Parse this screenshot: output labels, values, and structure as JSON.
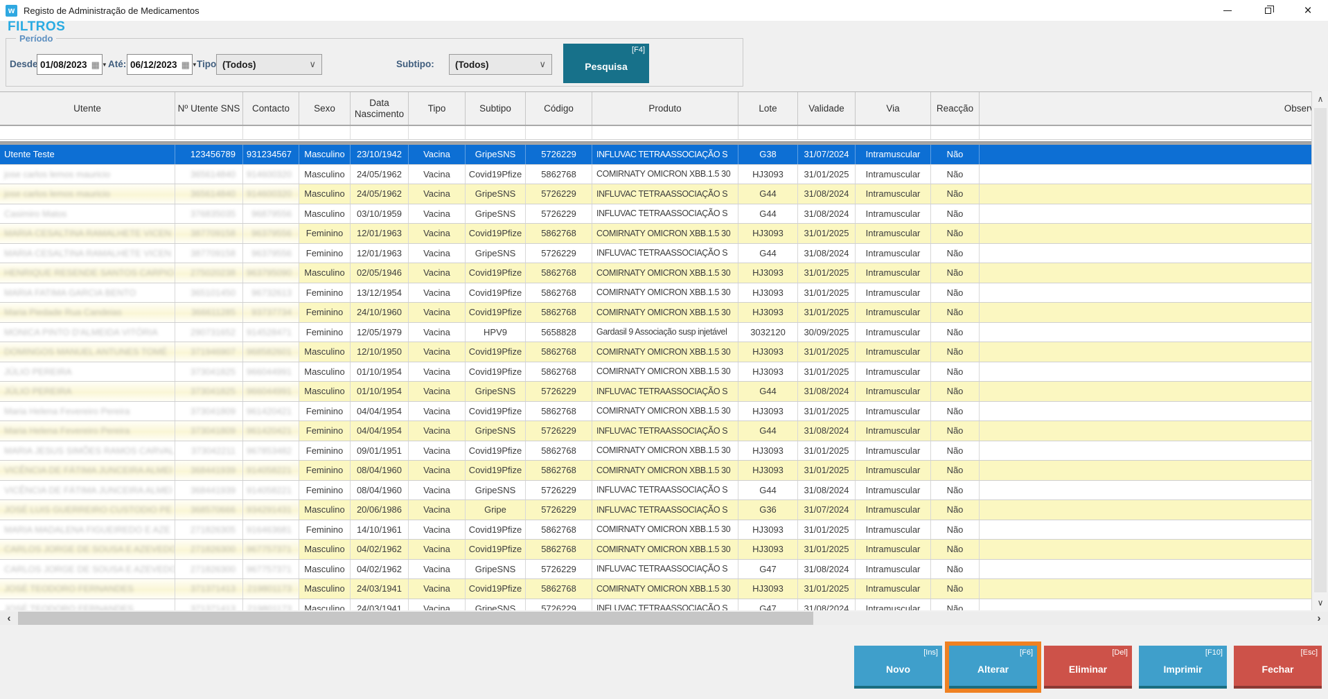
{
  "window": {
    "title": "Registo de Administração de Medicamentos",
    "icon_letter": "w"
  },
  "icons": {
    "calendar": "▦",
    "small_arrow": "▼",
    "chevron": "∨",
    "close": "×",
    "scroll_up": "∧",
    "scroll_down": "∨",
    "scroll_left": "‹",
    "scroll_right": "›"
  },
  "colors": {
    "filtros_heading": "#29abe2",
    "selected_row": "#0d6fd4",
    "alt_row_yellow": "#fbf7c1",
    "search_button_teal": "#17718a",
    "action_blue": "#3f9fcb",
    "action_red": "#cd5249",
    "highlight_orange": "#ef8122"
  },
  "filters": {
    "heading": "FILTROS",
    "group_label": "Período",
    "desde_label": "Desde:",
    "desde_value": "01/08/2023",
    "ate_label": "Até:",
    "ate_value": "06/12/2023",
    "tipo_label": "Tipo:",
    "tipo_value": "(Todos)",
    "subtipo_label": "Subtipo:",
    "subtipo_value": "(Todos)",
    "search_label": "Pesquisa",
    "search_shortcut": "[F4]"
  },
  "table": {
    "columns": [
      "Utente",
      "Nº Utente SNS",
      "Contacto",
      "Sexo",
      "Data Nascimento",
      "Tipo",
      "Subtipo",
      "Código",
      "Produto",
      "Lote",
      "Validade",
      "Via",
      "Reacção",
      "Observações"
    ],
    "rows": [
      {
        "bg": "selected",
        "redacted": false,
        "cells": [
          "Utente Teste",
          "123456789",
          "931234567",
          "Masculino",
          "23/10/1942",
          "Vacina",
          "GripeSNS",
          "5726229",
          "INFLUVAC TETRAASSOCIAÇÃO S",
          "G38",
          "31/07/2024",
          "Intramuscular",
          "Não",
          ""
        ]
      },
      {
        "bg": "white",
        "redacted": true,
        "cells": [
          "jose carlos lemos mauricio",
          "365614840",
          "914600320",
          "Masculino",
          "24/05/1962",
          "Vacina",
          "Covid19Pfize",
          "5862768",
          "COMIRNATY OMICRON XBB.1.5 30",
          "HJ3093",
          "31/01/2025",
          "Intramuscular",
          "Não",
          ""
        ]
      },
      {
        "bg": "yellow",
        "redacted": true,
        "cells": [
          "jose carlos lemos mauricio",
          "365614840",
          "914600320",
          "Masculino",
          "24/05/1962",
          "Vacina",
          "GripeSNS",
          "5726229",
          "INFLUVAC TETRAASSOCIAÇÃO S",
          "G44",
          "31/08/2024",
          "Intramuscular",
          "Não",
          ""
        ]
      },
      {
        "bg": "white",
        "redacted": true,
        "cells": [
          "Casimiro Matos",
          "376835035",
          "96879556",
          "Masculino",
          "03/10/1959",
          "Vacina",
          "GripeSNS",
          "5726229",
          "INFLUVAC TETRAASSOCIAÇÃO S",
          "G44",
          "31/08/2024",
          "Intramuscular",
          "Não",
          ""
        ]
      },
      {
        "bg": "yellow",
        "redacted": true,
        "cells": [
          "MARIA CESALTINA RAMALHETE VICEN",
          "387709158",
          "96379556",
          "Feminino",
          "12/01/1963",
          "Vacina",
          "Covid19Pfize",
          "5862768",
          "COMIRNATY OMICRON XBB.1.5 30",
          "HJ3093",
          "31/01/2025",
          "Intramuscular",
          "Não",
          ""
        ]
      },
      {
        "bg": "white",
        "redacted": true,
        "cells": [
          "MARIA CESALTINA RAMALHETE VICEN",
          "387709158",
          "96379556",
          "Feminino",
          "12/01/1963",
          "Vacina",
          "GripeSNS",
          "5726229",
          "INFLUVAC TETRAASSOCIAÇÃO S",
          "G44",
          "31/08/2024",
          "Intramuscular",
          "Não",
          ""
        ]
      },
      {
        "bg": "yellow",
        "redacted": true,
        "cells": [
          "HENRIQUE RESENDE SANTOS CARPIO",
          "275020238",
          "963795090",
          "Masculino",
          "02/05/1946",
          "Vacina",
          "Covid19Pfize",
          "5862768",
          "COMIRNATY OMICRON XBB.1.5 30",
          "HJ3093",
          "31/01/2025",
          "Intramuscular",
          "Não",
          ""
        ]
      },
      {
        "bg": "white",
        "redacted": true,
        "cells": [
          "MARIA FATIMA GARCIA BENTO",
          "365101450",
          "96732613",
          "Feminino",
          "13/12/1954",
          "Vacina",
          "Covid19Pfize",
          "5862768",
          "COMIRNATY OMICRON XBB.1.5 30",
          "HJ3093",
          "31/01/2025",
          "Intramuscular",
          "Não",
          ""
        ]
      },
      {
        "bg": "yellow",
        "redacted": true,
        "cells": [
          "Maria Piedade Rua Candeias",
          "366611285",
          "93737734",
          "Feminino",
          "24/10/1960",
          "Vacina",
          "Covid19Pfize",
          "5862768",
          "COMIRNATY OMICRON XBB.1.5 30",
          "HJ3093",
          "31/01/2025",
          "Intramuscular",
          "Não",
          ""
        ]
      },
      {
        "bg": "white",
        "redacted": true,
        "cells": [
          "MONICA PINTO D'ALMEIDA VITÓRIA",
          "290731652",
          "914528471",
          "Feminino",
          "12/05/1979",
          "Vacina",
          "HPV9",
          "5658828",
          "Gardasil 9 Associação susp injetável",
          "3032120",
          "30/09/2025",
          "Intramuscular",
          "Não",
          ""
        ]
      },
      {
        "bg": "yellow",
        "redacted": true,
        "cells": [
          "DOMINGOS MANUEL ANTUNES TOMÉ",
          "371946907",
          "968582601",
          "Masculino",
          "12/10/1950",
          "Vacina",
          "Covid19Pfize",
          "5862768",
          "COMIRNATY OMICRON XBB.1.5 30",
          "HJ3093",
          "31/01/2025",
          "Intramuscular",
          "Não",
          ""
        ]
      },
      {
        "bg": "white",
        "redacted": true,
        "cells": [
          "JÚLIO PEREIRA",
          "373041825",
          "966044991",
          "Masculino",
          "01/10/1954",
          "Vacina",
          "Covid19Pfize",
          "5862768",
          "COMIRNATY OMICRON XBB.1.5 30",
          "HJ3093",
          "31/01/2025",
          "Intramuscular",
          "Não",
          ""
        ]
      },
      {
        "bg": "yellow",
        "redacted": true,
        "cells": [
          "JÚLIO PEREIRA",
          "373041825",
          "966044991",
          "Masculino",
          "01/10/1954",
          "Vacina",
          "GripeSNS",
          "5726229",
          "INFLUVAC TETRAASSOCIAÇÃO S",
          "G44",
          "31/08/2024",
          "Intramuscular",
          "Não",
          ""
        ]
      },
      {
        "bg": "white",
        "redacted": true,
        "cells": [
          "Maria Helena Fevereiro Pereira",
          "373041809",
          "961420421",
          "Feminino",
          "04/04/1954",
          "Vacina",
          "Covid19Pfize",
          "5862768",
          "COMIRNATY OMICRON XBB.1.5 30",
          "HJ3093",
          "31/01/2025",
          "Intramuscular",
          "Não",
          ""
        ]
      },
      {
        "bg": "yellow",
        "redacted": true,
        "cells": [
          "Maria Helena Fevereiro Pereira",
          "373041809",
          "961420421",
          "Feminino",
          "04/04/1954",
          "Vacina",
          "GripeSNS",
          "5726229",
          "INFLUVAC TETRAASSOCIAÇÃO S",
          "G44",
          "31/08/2024",
          "Intramuscular",
          "Não",
          ""
        ]
      },
      {
        "bg": "white",
        "redacted": true,
        "cells": [
          "MARIA JESUS SIMÕES RAMOS CARVAL",
          "373042211",
          "967853482",
          "Feminino",
          "09/01/1951",
          "Vacina",
          "Covid19Pfize",
          "5862768",
          "COMIRNATY OMICRON XBB.1.5 30",
          "HJ3093",
          "31/01/2025",
          "Intramuscular",
          "Não",
          ""
        ]
      },
      {
        "bg": "yellow",
        "redacted": true,
        "cells": [
          "VICÊNCIA DE FÁTIMA JUNCEIRA ALMEI",
          "368441939",
          "914058221",
          "Feminino",
          "08/04/1960",
          "Vacina",
          "Covid19Pfize",
          "5862768",
          "COMIRNATY OMICRON XBB.1.5 30",
          "HJ3093",
          "31/01/2025",
          "Intramuscular",
          "Não",
          ""
        ]
      },
      {
        "bg": "white",
        "redacted": true,
        "cells": [
          "VICÊNCIA DE FÁTIMA JUNCEIRA ALMEI",
          "368441939",
          "914058221",
          "Feminino",
          "08/04/1960",
          "Vacina",
          "GripeSNS",
          "5726229",
          "INFLUVAC TETRAASSOCIAÇÃO S",
          "G44",
          "31/08/2024",
          "Intramuscular",
          "Não",
          ""
        ]
      },
      {
        "bg": "yellow",
        "redacted": true,
        "cells": [
          "JOSÉ LUIS GUERREIRO CUSTODIO PE",
          "368570666",
          "934291431",
          "Masculino",
          "20/06/1986",
          "Vacina",
          "Gripe",
          "5726229",
          "INFLUVAC TETRAASSOCIAÇÃO S",
          "G36",
          "31/07/2024",
          "Intramuscular",
          "Não",
          ""
        ]
      },
      {
        "bg": "white",
        "redacted": true,
        "cells": [
          "MARIA MADALENA FIGUEIREDO E AZE",
          "271826305",
          "916463681",
          "Feminino",
          "14/10/1961",
          "Vacina",
          "Covid19Pfize",
          "5862768",
          "COMIRNATY OMICRON XBB.1.5 30",
          "HJ3093",
          "31/01/2025",
          "Intramuscular",
          "Não",
          ""
        ]
      },
      {
        "bg": "yellow",
        "redacted": true,
        "cells": [
          "CARLOS JORGE DE SOUSA E AZEVEDO",
          "271826300",
          "967757371",
          "Masculino",
          "04/02/1962",
          "Vacina",
          "Covid19Pfize",
          "5862768",
          "COMIRNATY OMICRON XBB.1.5 30",
          "HJ3093",
          "31/01/2025",
          "Intramuscular",
          "Não",
          ""
        ]
      },
      {
        "bg": "white",
        "redacted": true,
        "cells": [
          "CARLOS JORGE DE SOUSA E AZEVEDO",
          "271826300",
          "967757371",
          "Masculino",
          "04/02/1962",
          "Vacina",
          "GripeSNS",
          "5726229",
          "INFLUVAC TETRAASSOCIAÇÃO S",
          "G47",
          "31/08/2024",
          "Intramuscular",
          "Não",
          ""
        ]
      },
      {
        "bg": "yellow",
        "redacted": true,
        "cells": [
          "JOSÉ TEODORO FERNANDES",
          "371371413",
          "219801173",
          "Masculino",
          "24/03/1941",
          "Vacina",
          "Covid19Pfize",
          "5862768",
          "COMIRNATY OMICRON XBB.1.5 30",
          "HJ3093",
          "31/01/2025",
          "Intramuscular",
          "Não",
          ""
        ]
      },
      {
        "bg": "white",
        "redacted": true,
        "cells": [
          "JOSÉ TEODORO FERNANDES",
          "371371413",
          "219801173",
          "Masculino",
          "24/03/1941",
          "Vacina",
          "GripeSNS",
          "5726229",
          "INFLUVAC TETRAASSOCIAÇÃO S",
          "G47",
          "31/08/2024",
          "Intramuscular",
          "Não",
          ""
        ]
      }
    ]
  },
  "actions": [
    {
      "label": "Novo",
      "shortcut": "[Ins]"
    },
    {
      "label": "Alterar",
      "shortcut": "[F6]"
    },
    {
      "label": "Eliminar",
      "shortcut": "[Del]"
    },
    {
      "label": "Imprimir",
      "shortcut": "[F10]"
    },
    {
      "label": "Fechar",
      "shortcut": "[Esc]"
    }
  ]
}
